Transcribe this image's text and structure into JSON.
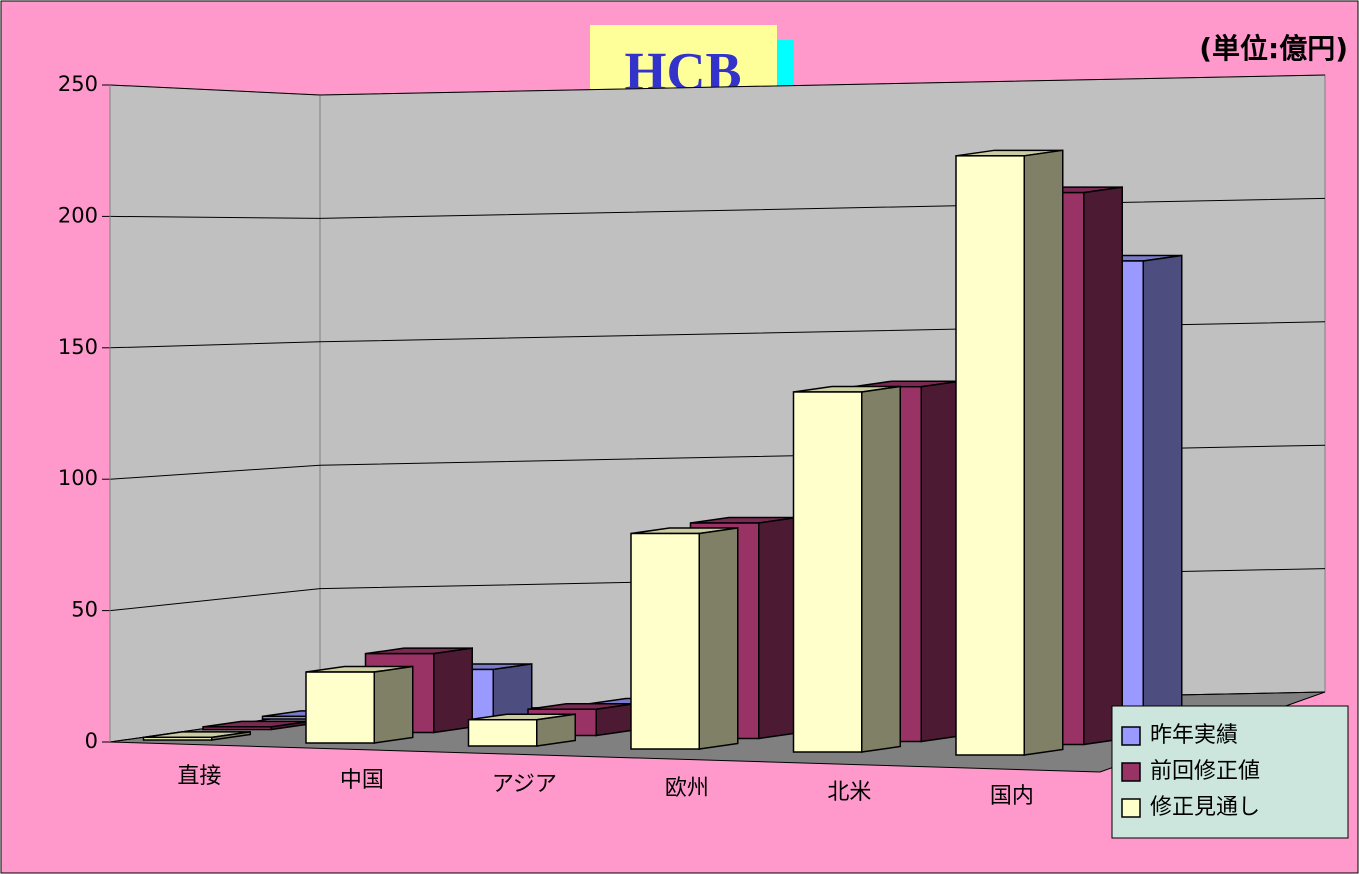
{
  "chart_data": {
    "type": "bar3d",
    "title": "HCB",
    "subtitle": "(単位:億円)",
    "categories": [
      "直接",
      "中国",
      "アジア",
      "欧州",
      "北米",
      "国内"
    ],
    "series": [
      {
        "name": "昨年実績",
        "color": "#9999ff",
        "values": [
          1,
          20,
          8,
          70,
          120,
          180
        ]
      },
      {
        "name": "前回修正値",
        "color": "#993366",
        "values": [
          1,
          30,
          10,
          82,
          135,
          210
        ]
      },
      {
        "name": "修正見通し",
        "color": "#ffffcc",
        "values": [
          1,
          27,
          10,
          82,
          137,
          228
        ]
      }
    ],
    "ylim": [
      0,
      250
    ],
    "yticks": [
      0,
      50,
      100,
      150,
      200,
      250
    ],
    "grid": true
  }
}
